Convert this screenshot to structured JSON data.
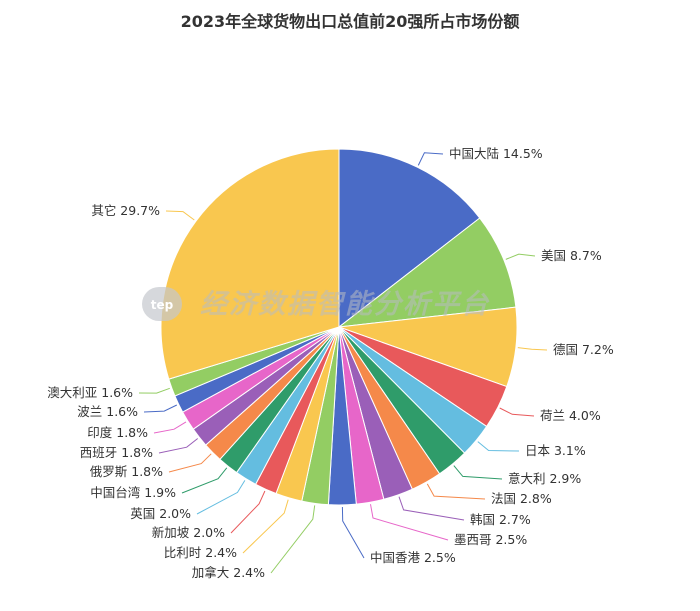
{
  "chart_data": {
    "type": "pie",
    "title": "2023年全球货物出口总值前20强所占市场份额",
    "unit": "%",
    "slices": [
      {
        "name": "中国大陆",
        "value": 14.5,
        "label": "中国大陆 14.5%",
        "color": "#4a6bc6"
      },
      {
        "name": "美国",
        "value": 8.7,
        "label": "美国 8.7%",
        "color": "#93cd63"
      },
      {
        "name": "德国",
        "value": 7.2,
        "label": "德国 7.2%",
        "color": "#f9c74f"
      },
      {
        "name": "荷兰",
        "value": 4.0,
        "label": "荷兰 4.0%",
        "color": "#e8595b"
      },
      {
        "name": "日本",
        "value": 3.1,
        "label": "日本 3.1%",
        "color": "#64bde0"
      },
      {
        "name": "意大利",
        "value": 2.9,
        "label": "意大利 2.9%",
        "color": "#2f9c6a"
      },
      {
        "name": "法国",
        "value": 2.8,
        "label": "法国 2.8%",
        "color": "#f5894a"
      },
      {
        "name": "韩国",
        "value": 2.7,
        "label": "韩国 2.7%",
        "color": "#9a5fb8"
      },
      {
        "name": "墨西哥",
        "value": 2.5,
        "label": "墨西哥 2.5%",
        "color": "#e766c9"
      },
      {
        "name": "中国香港",
        "value": 2.5,
        "label": "中国香港 2.5%",
        "color": "#4a6bc6"
      },
      {
        "name": "加拿大",
        "value": 2.4,
        "label": "加拿大 2.4%",
        "color": "#93cd63"
      },
      {
        "name": "比利时",
        "value": 2.4,
        "label": "比利时 2.4%",
        "color": "#f9c74f"
      },
      {
        "name": "新加坡",
        "value": 2.0,
        "label": "新加坡 2.0%",
        "color": "#e8595b"
      },
      {
        "name": "英国",
        "value": 2.0,
        "label": "英国 2.0%",
        "color": "#64bde0"
      },
      {
        "name": "中国台湾",
        "value": 1.9,
        "label": "中国台湾 1.9%",
        "color": "#2f9c6a"
      },
      {
        "name": "俄罗斯",
        "value": 1.8,
        "label": "俄罗斯 1.8%",
        "color": "#f5894a"
      },
      {
        "name": "西班牙",
        "value": 1.8,
        "label": "西班牙 1.8%",
        "color": "#9a5fb8"
      },
      {
        "name": "印度",
        "value": 1.8,
        "label": "印度 1.8%",
        "color": "#e766c9"
      },
      {
        "name": "波兰",
        "value": 1.6,
        "label": "波兰 1.6%",
        "color": "#4a6bc6"
      },
      {
        "name": "澳大利亚",
        "value": 1.6,
        "label": "澳大利亚 1.6%",
        "color": "#93cd63"
      },
      {
        "name": "其它",
        "value": 29.7,
        "label": "其它 29.7%",
        "color": "#f9c74f"
      }
    ]
  },
  "watermark": {
    "logo_text": "tep",
    "text": "经济数据智能分析平台"
  }
}
